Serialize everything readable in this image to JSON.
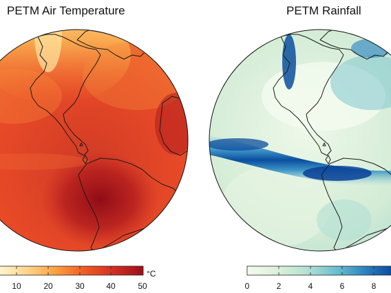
{
  "panels": [
    {
      "title": "PETM Air Temperature",
      "colorbar": {
        "ticks": [
          "10",
          "20",
          "30",
          "40",
          "50"
        ],
        "unit": "°C",
        "colors": [
          "#fff6d0",
          "#fed48a",
          "#fb9e3e",
          "#ef5a22",
          "#d12e24",
          "#9d0f18"
        ]
      }
    },
    {
      "title": "PETM Rainfall",
      "colorbar": {
        "ticks": [
          "0",
          "2",
          "4",
          "6",
          "8"
        ],
        "colors": [
          "#f3fbee",
          "#ddf0d9",
          "#b6e1d3",
          "#6cc0cf",
          "#2a82bf",
          "#08429a"
        ]
      }
    }
  ]
}
